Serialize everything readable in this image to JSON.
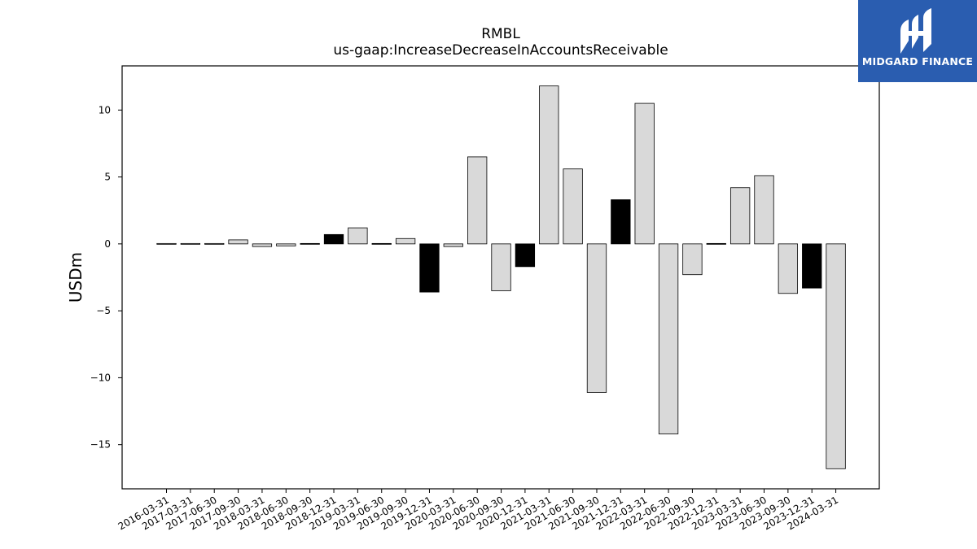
{
  "chart_data": {
    "type": "bar",
    "title": "RMBL",
    "subtitle": "us-gaap:IncreaseDecreaseInAccountsReceivable",
    "ylabel": "USDm",
    "xlabel": "",
    "ylim": [
      -18.3,
      13.3
    ],
    "yticks": [
      10,
      5,
      0,
      -5,
      -10,
      -15
    ],
    "ytick_labels": [
      "10",
      "5",
      "0",
      "−5",
      "−10",
      "−15"
    ],
    "grid": false,
    "categories": [
      "2016-03-31",
      "2017-03-31",
      "2017-06-30",
      "2017-09-30",
      "2018-03-31",
      "2018-06-30",
      "2018-09-30",
      "2018-12-31",
      "2019-03-31",
      "2019-06-30",
      "2019-09-30",
      "2019-12-31",
      "2020-03-31",
      "2020-06-30",
      "2020-09-30",
      "2020-12-31",
      "2021-03-31",
      "2021-06-30",
      "2021-09-30",
      "2021-12-31",
      "2022-03-31",
      "2022-06-30",
      "2022-09-30",
      "2022-12-31",
      "2023-03-31",
      "2023-06-30",
      "2023-09-30",
      "2023-12-31",
      "2024-03-31"
    ],
    "values": [
      0.0,
      0.0,
      0.0,
      0.3,
      -0.2,
      -0.15,
      0.05,
      0.7,
      1.2,
      -0.05,
      0.4,
      -3.6,
      -0.2,
      6.5,
      -3.5,
      -1.7,
      11.8,
      5.6,
      -11.1,
      3.3,
      10.5,
      -14.2,
      -2.3,
      0.05,
      4.2,
      5.1,
      -3.7,
      -3.3,
      -16.8
    ],
    "bar_colors": [
      "#d9d9d9",
      "#d9d9d9",
      "#d9d9d9",
      "#d9d9d9",
      "#d9d9d9",
      "#d9d9d9",
      "#000000",
      "#000000",
      "#d9d9d9",
      "#000000",
      "#d9d9d9",
      "#000000",
      "#d9d9d9",
      "#d9d9d9",
      "#d9d9d9",
      "#000000",
      "#d9d9d9",
      "#d9d9d9",
      "#d9d9d9",
      "#000000",
      "#d9d9d9",
      "#d9d9d9",
      "#d9d9d9",
      "#000000",
      "#d9d9d9",
      "#d9d9d9",
      "#d9d9d9",
      "#000000",
      "#d9d9d9"
    ]
  },
  "brand": {
    "name": "MIDGARD FINANCE",
    "color": "#2a5db0"
  }
}
